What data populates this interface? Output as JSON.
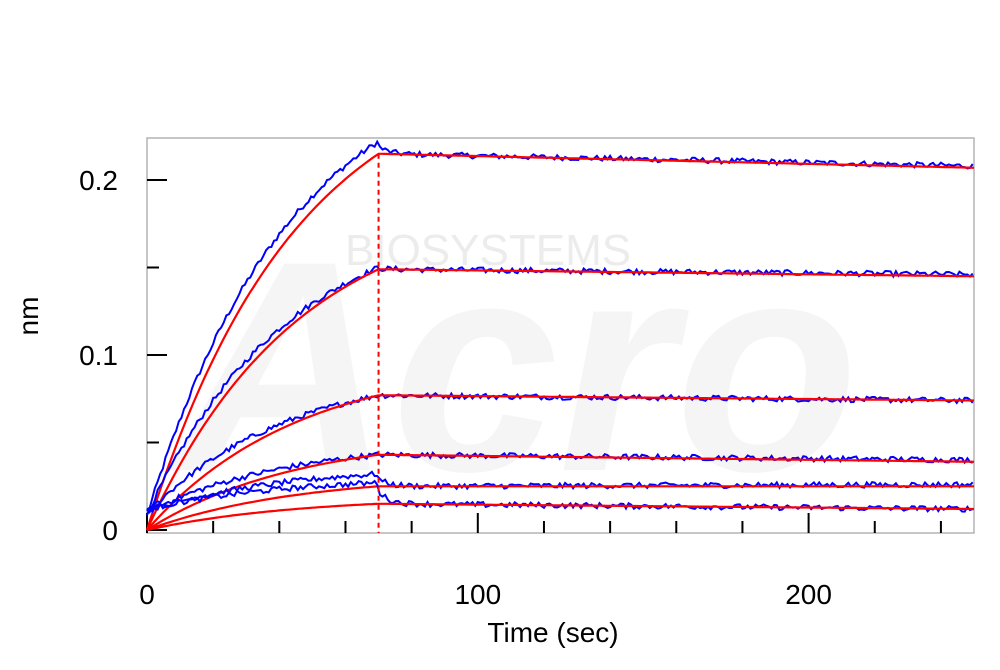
{
  "chart_data": {
    "type": "line",
    "title": "",
    "xlabel": "Time (sec)",
    "ylabel": "nm",
    "xlim": [
      0,
      250
    ],
    "ylim": [
      0,
      0.22
    ],
    "x_ticks": [
      0,
      100,
      200
    ],
    "x_tick_labels": [
      "0",
      "100",
      "200"
    ],
    "y_ticks": [
      0,
      0.1,
      0.2
    ],
    "y_tick_labels": [
      "0",
      "0.1",
      "0.2"
    ],
    "association_end_time": 70,
    "grid": false,
    "colors": {
      "measured": "#0000ff",
      "fit": "#ff0000",
      "marker_line": "#ff0000"
    },
    "watermark_text": "BIOSYSTEMS",
    "watermark_logo_text": "Acro",
    "curves": [
      {
        "fit_plateau": 0.215,
        "fit_end": 0.207,
        "measured_peak": 0.222,
        "measured_end": 0.208
      },
      {
        "fit_plateau": 0.149,
        "fit_end": 0.145,
        "measured_peak": 0.15,
        "measured_end": 0.146
      },
      {
        "fit_plateau": 0.077,
        "fit_end": 0.074,
        "measured_peak": 0.077,
        "measured_end": 0.074
      },
      {
        "fit_plateau": 0.043,
        "fit_end": 0.039,
        "measured_peak": 0.043,
        "measured_end": 0.04
      },
      {
        "fit_plateau": 0.025,
        "fit_end": 0.025,
        "measured_peak": 0.032,
        "measured_end": 0.026
      },
      {
        "fit_plateau": 0.015,
        "fit_end": 0.012,
        "measured_peak": 0.027,
        "measured_end": 0.012
      }
    ]
  }
}
